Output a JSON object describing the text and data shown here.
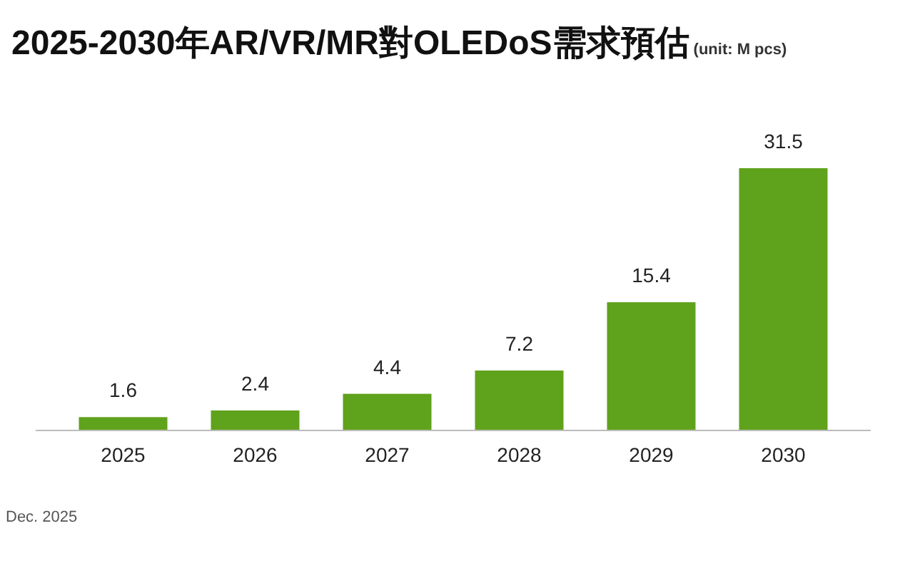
{
  "chart_data": {
    "type": "bar",
    "title": "2025-2030年AR/VR/MR對OLEDoS需求預估",
    "subtitle": "(unit: M pcs)",
    "categories": [
      "2025",
      "2026",
      "2027",
      "2028",
      "2029",
      "2030"
    ],
    "values": [
      1.6,
      2.4,
      4.4,
      7.2,
      15.4,
      31.5
    ],
    "color": "#5fa21c",
    "data_labels": true,
    "annotations": [
      "Dec. 2025"
    ]
  }
}
